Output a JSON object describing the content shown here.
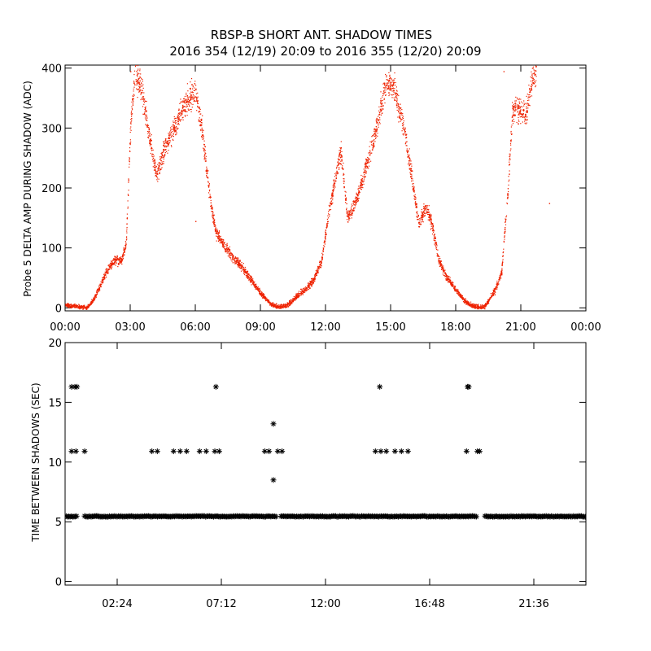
{
  "title_line1": "RBSP-B SHORT ANT. SHADOW TIMES",
  "title_line2": "2016 354 (12/19) 20:09 to 2016 355 (12/20) 20:09",
  "colors": {
    "red_dots": "#ee2200",
    "black": "#000000",
    "axis": "#000000"
  },
  "chart_data": [
    {
      "type": "scatter",
      "name": "delta-amp",
      "ylabel": "Probe 5 DELTA AMP DURING SHADOW (ADC)",
      "xlabel": "",
      "xlim": [
        0,
        24
      ],
      "ylim": [
        -5,
        405
      ],
      "xticks": [
        {
          "v": 0,
          "label": "00:00"
        },
        {
          "v": 3,
          "label": "03:00"
        },
        {
          "v": 6,
          "label": "06:00"
        },
        {
          "v": 9,
          "label": "09:00"
        },
        {
          "v": 12,
          "label": "12:00"
        },
        {
          "v": 15,
          "label": "15:00"
        },
        {
          "v": 18,
          "label": "18:00"
        },
        {
          "v": 21,
          "label": "21:00"
        },
        {
          "v": 24,
          "label": "00:00"
        }
      ],
      "yticks": [
        {
          "v": 0,
          "label": "0"
        },
        {
          "v": 100,
          "label": "100"
        },
        {
          "v": 200,
          "label": "200"
        },
        {
          "v": 300,
          "label": "300"
        },
        {
          "v": 400,
          "label": "400"
        }
      ],
      "series": [
        {
          "name": "probe5-delta-amp",
          "color": "#ee2200",
          "trend": [
            [
              0.0,
              5
            ],
            [
              0.5,
              3
            ],
            [
              1.0,
              1
            ],
            [
              1.3,
              15
            ],
            [
              1.7,
              45
            ],
            [
              2.0,
              68
            ],
            [
              2.3,
              82
            ],
            [
              2.6,
              80
            ],
            [
              2.8,
              110
            ],
            [
              3.0,
              300
            ],
            [
              3.2,
              390
            ],
            [
              3.5,
              370
            ],
            [
              3.8,
              300
            ],
            [
              4.2,
              220
            ],
            [
              4.5,
              260
            ],
            [
              5.0,
              300
            ],
            [
              5.5,
              340
            ],
            [
              6.0,
              360
            ],
            [
              6.3,
              300
            ],
            [
              6.6,
              200
            ],
            [
              6.9,
              130
            ],
            [
              7.2,
              110
            ],
            [
              7.6,
              90
            ],
            [
              8.0,
              75
            ],
            [
              8.5,
              50
            ],
            [
              9.0,
              25
            ],
            [
              9.4,
              8
            ],
            [
              9.8,
              2
            ],
            [
              10.2,
              5
            ],
            [
              10.6,
              18
            ],
            [
              11.0,
              30
            ],
            [
              11.4,
              45
            ],
            [
              11.8,
              80
            ],
            [
              12.1,
              150
            ],
            [
              12.4,
              210
            ],
            [
              12.7,
              260
            ],
            [
              13.0,
              150
            ],
            [
              13.4,
              180
            ],
            [
              13.8,
              230
            ],
            [
              14.2,
              280
            ],
            [
              14.5,
              330
            ],
            [
              14.8,
              380
            ],
            [
              15.2,
              360
            ],
            [
              15.6,
              300
            ],
            [
              16.0,
              210
            ],
            [
              16.3,
              140
            ],
            [
              16.6,
              170
            ],
            [
              16.9,
              140
            ],
            [
              17.2,
              80
            ],
            [
              17.6,
              50
            ],
            [
              18.0,
              30
            ],
            [
              18.4,
              12
            ],
            [
              18.8,
              3
            ],
            [
              19.3,
              2
            ],
            [
              19.8,
              30
            ],
            [
              20.1,
              60
            ],
            [
              20.4,
              200
            ],
            [
              20.6,
              330
            ],
            [
              20.9,
              330
            ],
            [
              21.2,
              320
            ],
            [
              21.5,
              380
            ],
            [
              21.7,
              395
            ]
          ],
          "isolated_points": [
            [
              3.0,
              395
            ],
            [
              6.0,
              145
            ],
            [
              22.3,
              175
            ],
            [
              20.2,
              395
            ]
          ]
        }
      ]
    },
    {
      "type": "scatter",
      "name": "time-between-shadows",
      "ylabel": "TIME BETWEEN SHADOWS (SEC)",
      "xlabel": "",
      "xlim": [
        0,
        24
      ],
      "ylim": [
        -0.3,
        20
      ],
      "xticks": [
        {
          "v": 2.4,
          "label": "02:24"
        },
        {
          "v": 7.2,
          "label": "07:12"
        },
        {
          "v": 12.0,
          "label": "12:00"
        },
        {
          "v": 16.8,
          "label": "16:48"
        },
        {
          "v": 21.6,
          "label": "21:36"
        }
      ],
      "yticks": [
        {
          "v": 0,
          "label": "0"
        },
        {
          "v": 5,
          "label": "5"
        },
        {
          "v": 10,
          "label": "10"
        },
        {
          "v": 15,
          "label": "15"
        },
        {
          "v": 20,
          "label": "20"
        }
      ],
      "series": [
        {
          "name": "baseline",
          "marker": "asterisk",
          "value": 5.45,
          "x_ranges": [
            [
              0.05,
              0.55
            ],
            [
              0.9,
              9.75
            ],
            [
              9.95,
              18.95
            ],
            [
              19.35,
              24.0
            ]
          ]
        },
        {
          "name": "outliers",
          "marker": "asterisk",
          "points": [
            [
              0.3,
              16.3
            ],
            [
              0.45,
              16.3
            ],
            [
              0.55,
              16.3
            ],
            [
              6.95,
              16.3
            ],
            [
              14.5,
              16.3
            ],
            [
              18.55,
              16.3
            ],
            [
              18.6,
              16.3
            ],
            [
              9.6,
              13.2
            ],
            [
              9.6,
              8.5
            ],
            [
              0.3,
              10.9
            ],
            [
              0.5,
              10.9
            ],
            [
              0.9,
              10.9
            ],
            [
              4.0,
              10.9
            ],
            [
              4.25,
              10.9
            ],
            [
              5.0,
              10.9
            ],
            [
              5.3,
              10.9
            ],
            [
              5.6,
              10.9
            ],
            [
              6.2,
              10.9
            ],
            [
              6.5,
              10.9
            ],
            [
              6.9,
              10.9
            ],
            [
              7.1,
              10.9
            ],
            [
              9.2,
              10.9
            ],
            [
              9.4,
              10.9
            ],
            [
              9.8,
              10.9
            ],
            [
              10.0,
              10.9
            ],
            [
              14.3,
              10.9
            ],
            [
              14.55,
              10.9
            ],
            [
              14.8,
              10.9
            ],
            [
              15.2,
              10.9
            ],
            [
              15.5,
              10.9
            ],
            [
              15.8,
              10.9
            ],
            [
              18.5,
              10.9
            ],
            [
              19.0,
              10.9
            ],
            [
              19.1,
              10.9
            ]
          ]
        }
      ]
    }
  ]
}
